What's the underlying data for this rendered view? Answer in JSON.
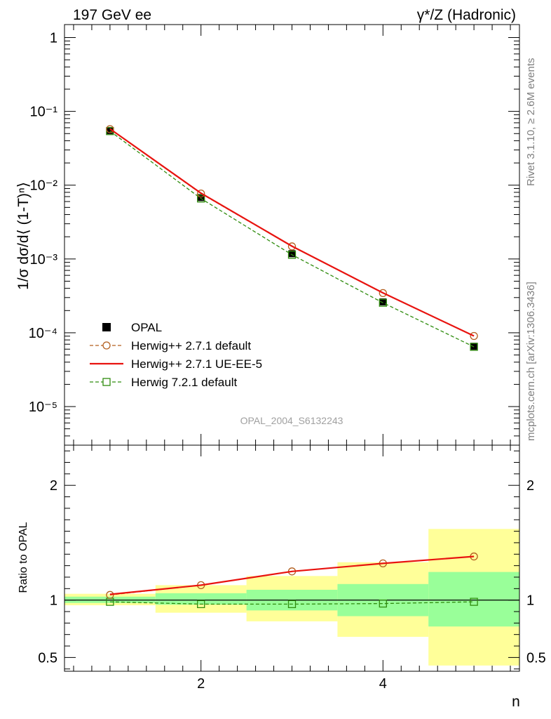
{
  "header": {
    "left": "197 GeV ee",
    "right": "γ*/Z (Hadronic)"
  },
  "side_labels": {
    "rivet": "Rivet 3.1.10, ≥ 2.6M events",
    "mcplots": "mcplots.cern.ch [arXiv:1306.3436]"
  },
  "watermark": "OPAL_2004_S6132243",
  "chart_data": [
    {
      "type": "scatter",
      "panel": "main",
      "ylabel": "1/σ dσ/d⟨ (1-T)ⁿ⟩",
      "yscale": "log",
      "xlim": [
        0.5,
        5.5
      ],
      "ylim": [
        3e-06,
        1.5
      ],
      "y_ticks": [
        {
          "value": 1,
          "label": "1"
        },
        {
          "value": 0.1,
          "label": "10⁻¹"
        },
        {
          "value": 0.01,
          "label": "10⁻²"
        },
        {
          "value": 0.001,
          "label": "10⁻³"
        },
        {
          "value": 0.0001,
          "label": "10⁻⁴"
        },
        {
          "value": 1e-05,
          "label": "10⁻⁵"
        }
      ],
      "x": [
        1,
        2,
        3,
        4,
        5
      ],
      "series": [
        {
          "name": "OPAL",
          "style": "data",
          "color": "#000000",
          "values": [
            0.055,
            0.0068,
            0.00118,
            0.000262,
            6.55e-05
          ]
        },
        {
          "name": "Herwig++ 2.7.1 default",
          "style": "dashed-circle",
          "color": "#b35f1f",
          "values": [
            0.0575,
            0.0077,
            0.00148,
            0.000345,
            9.05e-05
          ]
        },
        {
          "name": "Herwig++ 2.7.1 UE-EE-5",
          "style": "solid",
          "color": "#e8130f",
          "values": [
            0.058,
            0.0078,
            0.00149,
            0.000347,
            9.05e-05
          ]
        },
        {
          "name": "Herwig 7.2.1 default",
          "style": "dashed-square",
          "color": "#2f8c0e",
          "values": [
            0.054,
            0.0066,
            0.00114,
            0.000255,
            6.45e-05
          ]
        }
      ]
    },
    {
      "type": "line",
      "panel": "ratio",
      "ylabel": "Ratio to OPAL",
      "xlabel": "n",
      "xlim": [
        0.5,
        5.5
      ],
      "ylim": [
        0.38,
        2.35
      ],
      "x_ticks": [
        {
          "value": 2,
          "label": "2"
        },
        {
          "value": 4,
          "label": "4"
        }
      ],
      "y_ticks": [
        {
          "value": 2,
          "label": "2"
        },
        {
          "value": 1,
          "label": "1"
        },
        {
          "value": 0.5,
          "label": "0.5"
        }
      ],
      "bands": [
        {
          "x0": 0.5,
          "x1": 1.5,
          "stat": [
            0.975,
            1.03
          ],
          "total": [
            0.955,
            1.055
          ]
        },
        {
          "x0": 1.5,
          "x1": 2.5,
          "stat": [
            0.96,
            1.06
          ],
          "total": [
            0.89,
            1.13
          ]
        },
        {
          "x0": 2.5,
          "x1": 3.5,
          "stat": [
            0.91,
            1.09
          ],
          "total": [
            0.815,
            1.21
          ]
        },
        {
          "x0": 3.5,
          "x1": 4.5,
          "stat": [
            0.86,
            1.14
          ],
          "total": [
            0.68,
            1.33
          ]
        },
        {
          "x0": 4.5,
          "x1": 5.5,
          "stat": [
            0.77,
            1.245
          ],
          "total": [
            0.43,
            1.62
          ]
        }
      ],
      "x": [
        1,
        2,
        3,
        4,
        5
      ],
      "series": [
        {
          "name": "Herwig++ 2.7.1 default",
          "style": "dashed-circle",
          "color": "#b35f1f",
          "values": [
            1.045,
            1.13,
            1.25,
            1.32,
            1.38
          ]
        },
        {
          "name": "Herwig++ 2.7.1 UE-EE-5",
          "style": "solid",
          "color": "#e8130f",
          "values": [
            1.05,
            1.13,
            1.25,
            1.32,
            1.38
          ]
        },
        {
          "name": "Herwig 7.2.1 default",
          "style": "dashed-square",
          "color": "#2f8c0e",
          "values": [
            0.985,
            0.965,
            0.965,
            0.97,
            0.985
          ]
        }
      ]
    }
  ],
  "colors": {
    "band_stat": "#99ff99",
    "band_total": "#ffff99",
    "axis": "#000000"
  }
}
